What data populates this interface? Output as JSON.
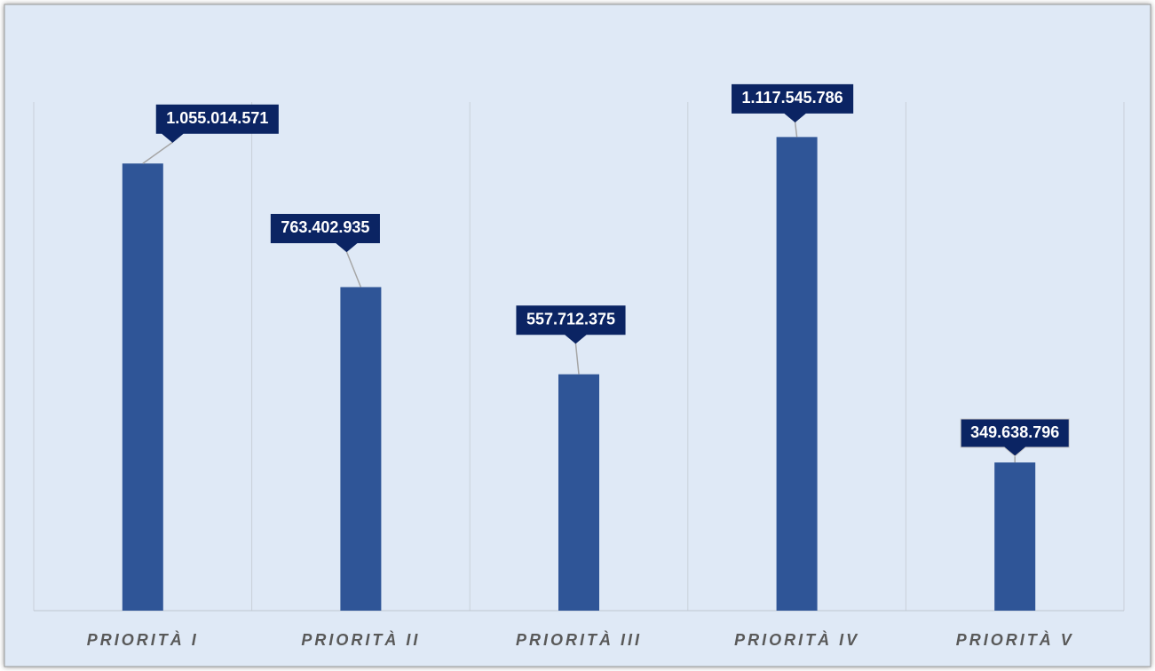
{
  "chart_data": {
    "type": "bar",
    "categories": [
      "PRIORITÀ I",
      "PRIORITÀ II",
      "PRIORITÀ III",
      "PRIORITÀ IV",
      "PRIORITÀ V"
    ],
    "values": [
      1055014571,
      763402935,
      557712375,
      1117545786,
      349638796
    ],
    "value_labels": [
      "1.055.014.571",
      "763.402.935",
      "557.712.375",
      "1.117.545.786",
      "349.638.796"
    ],
    "color": "#2f5597",
    "ylim": [
      0,
      1200000000
    ],
    "grid": true
  }
}
